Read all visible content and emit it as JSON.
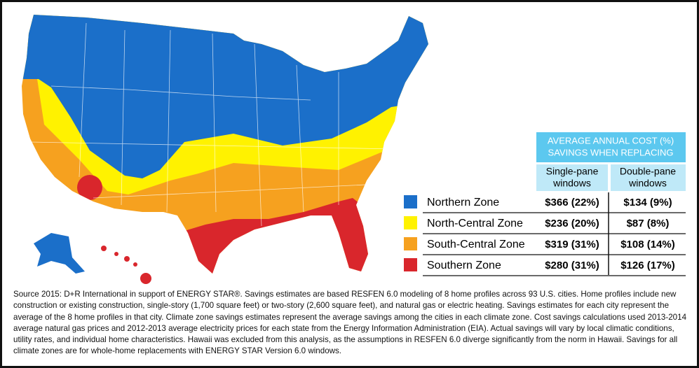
{
  "table": {
    "title_lines": [
      "AVERAGE ANNUAL COST (%)",
      "SAVINGS WHEN REPLACING"
    ],
    "columns": [
      [
        "Single-pane",
        "windows"
      ],
      [
        "Double-pane",
        "windows"
      ]
    ],
    "rows": [
      {
        "zone": "Northern Zone",
        "color": "#1b6fc9",
        "single": "$366 (22%)",
        "double": "$134 (9%)"
      },
      {
        "zone": "North-Central Zone",
        "color": "#fff200",
        "single": "$236 (20%)",
        "double": "$87 (8%)"
      },
      {
        "zone": "South-Central Zone",
        "color": "#f6a11f",
        "single": "$319 (31%)",
        "double": "$108 (14%)"
      },
      {
        "zone": "Southern Zone",
        "color": "#d9262c",
        "single": "$280 (31%)",
        "double": "$126 (17%)"
      }
    ]
  },
  "source": "Source 2015: D+R International in support of ENERGY STAR®. Savings estimates are based RESFEN 6.0 modeling of 8 home profiles across 93 U.S. cities. Home profiles include new construction or existing construction, single-story (1,700 square feet) or two-story (2,600 square feet), and natural gas or electric heating. Savings estimates for each city represent the average of the 8 home profiles in that city. Climate zone savings estimates represent the average savings among the cities in each climate zone. Cost savings calculations used 2013-2014 average natural gas prices and 2012-2013 average electricity prices for each state from the Energy Information Administration (EIA). Actual savings will vary by local climatic conditions, utility rates, and individual home characteristics. Hawaii was excluded from this analysis, as the assumptions in RESFEN 6.0 diverge significantly from the norm in Hawaii. Savings for all climate zones are for whole-home replacements with ENERGY STAR Version 6.0 windows."
}
